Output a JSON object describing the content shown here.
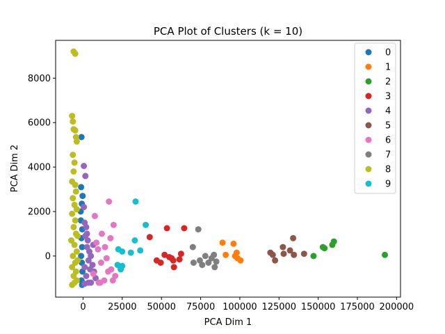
{
  "chart_data": {
    "type": "scatter",
    "title": "PCA Plot of Clusters (k = 10)",
    "xlabel": "PCA Dim 1",
    "ylabel": "PCA Dim 2",
    "xlim": [
      -17500,
      202500
    ],
    "ylim": [
      -1850,
      9700
    ],
    "xticks": [
      0,
      25000,
      50000,
      75000,
      100000,
      125000,
      150000,
      175000,
      200000
    ],
    "xtick_labels": [
      "0",
      "25000",
      "50000",
      "75000",
      "100000",
      "125000",
      "150000",
      "175000",
      "200000"
    ],
    "yticks": [
      0,
      2000,
      4000,
      6000,
      8000
    ],
    "ytick_labels": [
      "0",
      "2000",
      "4000",
      "6000",
      "8000"
    ],
    "grid": false,
    "legend_position": "top-right",
    "series": [
      {
        "name": "0",
        "color": "#1f77b4",
        "points": [
          [
            -1000,
            5350
          ],
          [
            -1200,
            3100
          ],
          [
            -800,
            2350
          ],
          [
            -1500,
            2000
          ],
          [
            -500,
            1200
          ],
          [
            -1000,
            800
          ],
          [
            -600,
            400
          ],
          [
            -1200,
            0
          ],
          [
            -800,
            -300
          ],
          [
            -400,
            -700
          ],
          [
            -1000,
            -1100
          ],
          [
            -600,
            -1300
          ],
          [
            -1400,
            1600
          ],
          [
            -300,
            2700
          ]
        ]
      },
      {
        "name": "1",
        "color": "#ff7f0e",
        "points": [
          [
            89000,
            600
          ],
          [
            91000,
            50
          ],
          [
            96000,
            550
          ],
          [
            97000,
            0
          ],
          [
            98000,
            150
          ],
          [
            98500,
            -100
          ],
          [
            100500,
            -200
          ]
        ]
      },
      {
        "name": "2",
        "color": "#2ca02c",
        "points": [
          [
            147000,
            0
          ],
          [
            153000,
            400
          ],
          [
            154000,
            350
          ],
          [
            159000,
            500
          ],
          [
            160000,
            650
          ],
          [
            192500,
            50
          ]
        ]
      },
      {
        "name": "3",
        "color": "#d62728",
        "points": [
          [
            42500,
            850
          ],
          [
            47000,
            -200
          ],
          [
            49500,
            -300
          ],
          [
            52000,
            50
          ],
          [
            53500,
            1250
          ],
          [
            55000,
            -50
          ],
          [
            56500,
            -100
          ],
          [
            57500,
            -200
          ],
          [
            58000,
            -500
          ],
          [
            61500,
            -150
          ],
          [
            62500,
            100
          ],
          [
            64500,
            1250
          ]
        ]
      },
      {
        "name": "4",
        "color": "#9467bd",
        "points": [
          [
            500,
            4050
          ],
          [
            1500,
            3600
          ],
          [
            500,
            2200
          ],
          [
            1000,
            1500
          ],
          [
            2000,
            1300
          ],
          [
            1500,
            900
          ],
          [
            3000,
            700
          ],
          [
            2500,
            400
          ],
          [
            4000,
            200
          ],
          [
            5000,
            0
          ],
          [
            3500,
            -200
          ],
          [
            6000,
            -400
          ],
          [
            7000,
            -700
          ],
          [
            8000,
            -1000
          ],
          [
            5000,
            -1200
          ],
          [
            2000,
            -900
          ],
          [
            1000,
            -500
          ],
          [
            3500,
            -1200
          ],
          [
            6500,
            500
          ],
          [
            2500,
            1000
          ],
          [
            4500,
            -600
          ],
          [
            1000,
            -1250
          ]
        ]
      },
      {
        "name": "5",
        "color": "#8c564b",
        "points": [
          [
            119500,
            150
          ],
          [
            121000,
            50
          ],
          [
            122500,
            -200
          ],
          [
            127500,
            400
          ],
          [
            128000,
            100
          ],
          [
            132000,
            250
          ],
          [
            134000,
            800
          ],
          [
            134500,
            50
          ],
          [
            141000,
            100
          ]
        ]
      },
      {
        "name": "6",
        "color": "#e377c2",
        "points": [
          [
            16500,
            2450
          ],
          [
            7500,
            1800
          ],
          [
            19500,
            1400
          ],
          [
            12000,
            1000
          ],
          [
            17500,
            800
          ],
          [
            14000,
            400
          ],
          [
            9500,
            300
          ],
          [
            15000,
            -100
          ],
          [
            11500,
            -300
          ],
          [
            18000,
            -600
          ],
          [
            20500,
            -900
          ],
          [
            13500,
            -1100
          ],
          [
            10000,
            -1200
          ],
          [
            6500,
            -800
          ],
          [
            8500,
            600
          ],
          [
            19000,
            -1100
          ],
          [
            16000,
            -700
          ],
          [
            11000,
            -1200
          ]
        ]
      },
      {
        "name": "7",
        "color": "#7f7f7f",
        "points": [
          [
            70000,
            400
          ],
          [
            73500,
            1200
          ],
          [
            70500,
            -300
          ],
          [
            74500,
            -200
          ],
          [
            76000,
            -400
          ],
          [
            78000,
            0
          ],
          [
            80000,
            -300
          ],
          [
            82000,
            -100
          ],
          [
            83500,
            50
          ],
          [
            84000,
            -500
          ],
          [
            85000,
            -250
          ]
        ]
      },
      {
        "name": "8",
        "color": "#bcbd22",
        "points": [
          [
            -6000,
            9200
          ],
          [
            -5000,
            9100
          ],
          [
            -7000,
            6300
          ],
          [
            -6500,
            6050
          ],
          [
            -6000,
            5700
          ],
          [
            -5000,
            5650
          ],
          [
            -4500,
            5350
          ],
          [
            -4000,
            5150
          ],
          [
            -6500,
            4550
          ],
          [
            -5500,
            4200
          ],
          [
            -6000,
            3800
          ],
          [
            -7000,
            3350
          ],
          [
            -5000,
            3200
          ],
          [
            -4500,
            2900
          ],
          [
            -6500,
            2600
          ],
          [
            -5500,
            2300
          ],
          [
            -4000,
            2100
          ],
          [
            -7000,
            1900
          ],
          [
            -5000,
            1600
          ],
          [
            -6000,
            1300
          ],
          [
            -4500,
            1000
          ],
          [
            -7500,
            700
          ],
          [
            -5500,
            500
          ],
          [
            -4000,
            200
          ],
          [
            -6500,
            0
          ],
          [
            -5000,
            -300
          ],
          [
            -7000,
            -500
          ],
          [
            -4500,
            -700
          ],
          [
            -6000,
            -900
          ],
          [
            -5500,
            -1200
          ],
          [
            -7000,
            -1300
          ],
          [
            -4000,
            -1100
          ],
          [
            -3500,
            900
          ],
          [
            -3500,
            -200
          ]
        ]
      },
      {
        "name": "9",
        "color": "#17becf",
        "points": [
          [
            33500,
            2450
          ],
          [
            40000,
            1400
          ],
          [
            33000,
            700
          ],
          [
            22500,
            300
          ],
          [
            25000,
            200
          ],
          [
            30500,
            150
          ],
          [
            36500,
            250
          ],
          [
            22000,
            -400
          ],
          [
            25000,
            -450
          ],
          [
            24000,
            -600
          ]
        ]
      }
    ]
  }
}
